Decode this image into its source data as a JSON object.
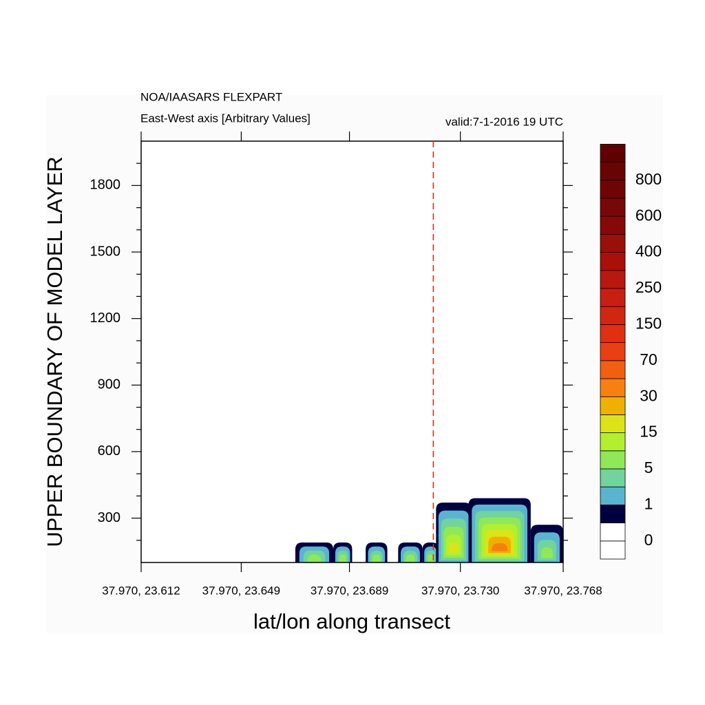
{
  "chart_data": {
    "type": "contour",
    "title": "NOA/IAASARS FLEXPART",
    "subtitle": "East-West axis [Arbitrary Values]",
    "annotation": "valid:7-1-2016 19 UTC",
    "xlabel": "lat/lon along transect",
    "ylabel": "UPPER BOUNDARY OF MODEL LAYER",
    "xlim": [
      23.612,
      23.768
    ],
    "xticks": [
      {
        "value": 23.612,
        "label": "37.970, 23.612"
      },
      {
        "value": 23.649,
        "label": "37.970, 23.649"
      },
      {
        "value": 23.689,
        "label": "37.970, 23.689"
      },
      {
        "value": 23.73,
        "label": "37.970, 23.730"
      },
      {
        "value": 23.768,
        "label": "37.970, 23.768"
      }
    ],
    "ylim": [
      100,
      2000
    ],
    "yticks": [
      300,
      600,
      900,
      1200,
      1500,
      1800
    ],
    "yminorticks": [
      200,
      400,
      500,
      700,
      800,
      1000,
      1100,
      1300,
      1400,
      1600,
      1700,
      1900
    ],
    "marker_x": 23.72,
    "marker_color": "#d83010",
    "plumes": [
      {
        "x0": 23.669,
        "x1": 23.683,
        "top": 190,
        "peak": 10
      },
      {
        "x0": 23.683,
        "x1": 23.69,
        "top": 190,
        "peak": 6
      },
      {
        "x0": 23.695,
        "x1": 23.703,
        "top": 190,
        "peak": 8
      },
      {
        "x0": 23.707,
        "x1": 23.716,
        "top": 190,
        "peak": 8
      },
      {
        "x0": 23.716,
        "x1": 23.722,
        "top": 190,
        "peak": 6
      },
      {
        "x0": 23.721,
        "x1": 23.734,
        "top": 370,
        "peak": 16
      },
      {
        "x0": 23.733,
        "x1": 23.756,
        "top": 390,
        "peak": 40
      },
      {
        "x0": 23.756,
        "x1": 23.768,
        "top": 270,
        "peak": 8
      }
    ],
    "colorbar": {
      "levels": [
        0,
        null,
        1,
        null,
        5,
        null,
        15,
        null,
        30,
        null,
        70,
        null,
        150,
        null,
        250,
        null,
        400,
        null,
        600,
        null,
        800,
        null
      ],
      "colors": [
        "#ffffff",
        "#ffffff",
        "#000040",
        "#5ab4d0",
        "#70d49c",
        "#90e858",
        "#b0f030",
        "#dce418",
        "#f0b000",
        "#f88010",
        "#f06010",
        "#e84010",
        "#e03010",
        "#d02810",
        "#c82010",
        "#b81810",
        "#a81008",
        "#981008",
        "#880808",
        "#780808",
        "#700404",
        "#680404",
        "#600000"
      ]
    }
  }
}
